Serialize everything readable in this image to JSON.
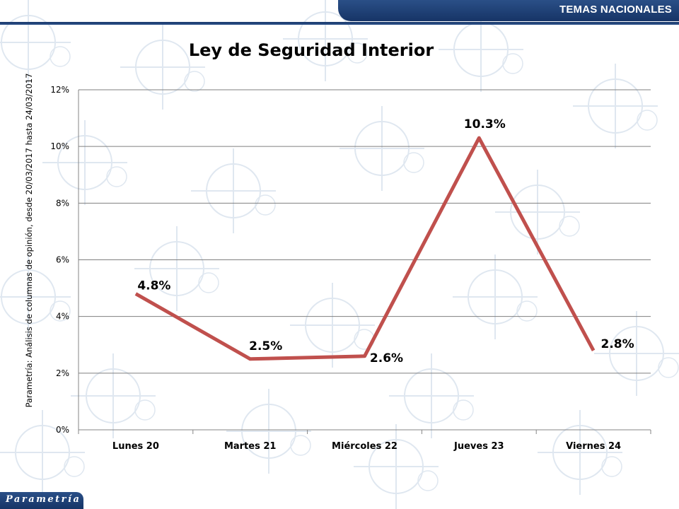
{
  "header": {
    "section_label": "TEMAS NACIONALES"
  },
  "footer": {
    "logo_text": "Parametría"
  },
  "colors": {
    "header_bg": "#1e4178",
    "line": "#c0504d",
    "grid": "#7f7f7f"
  },
  "chart_data": {
    "type": "line",
    "title": "Ley de Seguridad Interior",
    "ylabel": "Parametría: Análisis de columnas de opinión, desde 20/03/2017 hasta 24/03/2017",
    "xlabel": "",
    "categories": [
      "Lunes 20",
      "Martes 21",
      "Miércoles 22",
      "Jueves 23",
      "Viernes 24"
    ],
    "series": [
      {
        "values": [
          4.8,
          2.5,
          2.6,
          10.3,
          2.8
        ],
        "data_labels": [
          "4.8%",
          "2.5%",
          "2.6%",
          "10.3%",
          "2.8%"
        ]
      }
    ],
    "ylim": [
      0,
      12
    ],
    "yticks": [
      0,
      2,
      4,
      6,
      8,
      10,
      12
    ],
    "ytick_labels": [
      "0%",
      "2%",
      "4%",
      "6%",
      "8%",
      "10%",
      "12%"
    ],
    "grid": true,
    "legend": "none"
  }
}
